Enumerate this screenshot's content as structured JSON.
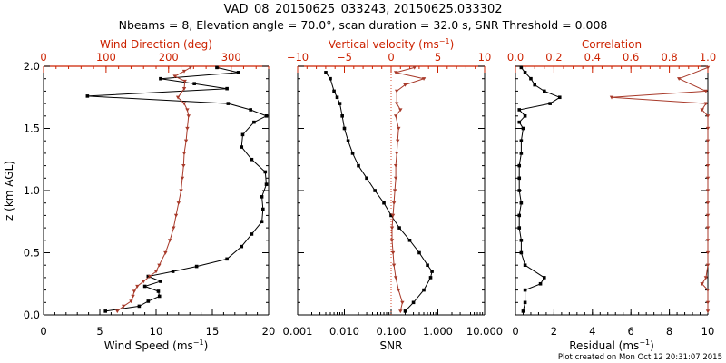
{
  "title_line1": "VAD_08_20150625_033243, 20150625.033302",
  "title_line2": "Nbeams = 8, Elevation angle = 70.0°, scan duration = 32.0 s, SNR Threshold = 0.008",
  "footer": "Plot created on Mon Oct 12 20:31:07 2015",
  "colors": {
    "black_series": "#000000",
    "red_series": "#a83a2a",
    "red_axis": "#cc2200"
  },
  "chart_data": [
    {
      "type": "line",
      "ylabel": "z (km AGL)",
      "ylim": [
        0,
        2.0
      ],
      "yticks": [
        "0.0",
        "0.5",
        "1.0",
        "1.5",
        "2.0"
      ],
      "bottom_axis": {
        "label_main": "Wind Speed (ms",
        "label_sup": "−1",
        "label_end": ")",
        "range": [
          0,
          20
        ],
        "ticks": [
          "0",
          "5",
          "10",
          "15",
          "20"
        ]
      },
      "top_axis": {
        "label": "Wind Direction (deg)",
        "range": [
          0,
          360
        ],
        "ticks": [
          "0",
          "100",
          "200",
          "300"
        ]
      },
      "series": [
        {
          "axis": "bottom",
          "color": "black",
          "marker": "square",
          "z": [
            0.03,
            0.07,
            0.11,
            0.15,
            0.19,
            0.23,
            0.27,
            0.31,
            0.35,
            0.39,
            0.45,
            0.55,
            0.65,
            0.75,
            0.85,
            0.95,
            1.05,
            1.15,
            1.25,
            1.35,
            1.45,
            1.55,
            1.6,
            1.65,
            1.7,
            1.76,
            1.82,
            1.86,
            1.9,
            1.95,
            1.99
          ],
          "v": [
            5.5,
            8.5,
            9.3,
            10.3,
            10.2,
            9.0,
            10.4,
            9.3,
            11.5,
            13.6,
            16.3,
            17.6,
            18.5,
            19.4,
            19.5,
            19.4,
            19.8,
            19.7,
            18.5,
            17.6,
            17.7,
            18.7,
            19.8,
            18.4,
            16.4,
            3.9,
            16.3,
            13.4,
            10.4,
            17.3,
            15.4
          ]
        },
        {
          "axis": "top",
          "color": "red",
          "marker": "triangle",
          "z": [
            0.03,
            0.07,
            0.11,
            0.15,
            0.19,
            0.23,
            0.27,
            0.31,
            0.35,
            0.4,
            0.5,
            0.6,
            0.7,
            0.8,
            0.9,
            1.0,
            1.1,
            1.2,
            1.3,
            1.4,
            1.5,
            1.6,
            1.65,
            1.7,
            1.75,
            1.82,
            1.88,
            1.92,
            1.96,
            1.99
          ],
          "v": [
            118,
            128,
            140,
            143,
            145,
            150,
            160,
            170,
            180,
            185,
            195,
            202,
            208,
            212,
            216,
            220,
            222,
            224,
            225,
            228,
            230,
            232,
            230,
            225,
            215,
            225,
            226,
            210,
            225,
            235
          ]
        }
      ]
    },
    {
      "type": "line",
      "xscale": "log",
      "ylim": [
        0,
        2.0
      ],
      "bottom_axis": {
        "label": "SNR",
        "range": [
          0.001,
          10
        ],
        "ticks": [
          "0.001",
          "0.010",
          "0.100",
          "1.000",
          "10.000"
        ]
      },
      "top_axis": {
        "label_main": "Vertical velocity (ms",
        "label_sup": "−1",
        "label_end": ")",
        "range": [
          -10,
          10
        ],
        "ticks": [
          "−10",
          "−5",
          "0",
          "5",
          "10"
        ]
      },
      "series": [
        {
          "axis": "bottom",
          "color": "black",
          "marker": "square",
          "z": [
            0.03,
            0.1,
            0.2,
            0.3,
            0.35,
            0.4,
            0.5,
            0.6,
            0.7,
            0.8,
            0.9,
            1.0,
            1.1,
            1.2,
            1.3,
            1.4,
            1.5,
            1.6,
            1.7,
            1.75,
            1.8,
            1.9,
            1.95
          ],
          "v": [
            0.2,
            0.3,
            0.5,
            0.7,
            0.75,
            0.6,
            0.4,
            0.25,
            0.15,
            0.1,
            0.07,
            0.045,
            0.03,
            0.02,
            0.015,
            0.012,
            0.01,
            0.009,
            0.008,
            0.007,
            0.006,
            0.005,
            0.004
          ]
        },
        {
          "axis": "top",
          "color": "red",
          "marker": "triangle",
          "z": [
            0.03,
            0.1,
            0.2,
            0.3,
            0.4,
            0.5,
            0.6,
            0.7,
            0.8,
            0.9,
            1.0,
            1.1,
            1.2,
            1.3,
            1.4,
            1.5,
            1.6,
            1.65,
            1.7,
            1.8,
            1.85,
            1.9,
            1.95,
            1.99
          ],
          "v": [
            1.0,
            1.2,
            0.8,
            0.5,
            0.3,
            0.2,
            0.1,
            0.1,
            0.2,
            0.3,
            0.4,
            0.5,
            0.5,
            0.6,
            0.7,
            0.8,
            0.5,
            1.0,
            0.6,
            0.6,
            1.5,
            3.5,
            0.5,
            2.5
          ]
        }
      ]
    },
    {
      "type": "line",
      "ylim": [
        0,
        2.0
      ],
      "bottom_axis": {
        "label_main": "Residual (ms",
        "label_sup": "−1",
        "label_end": ")",
        "range": [
          0,
          10
        ],
        "ticks": [
          "0",
          "2",
          "4",
          "6",
          "8",
          "10"
        ]
      },
      "top_axis": {
        "label": "Correlation",
        "range": [
          0,
          1.0
        ],
        "ticks": [
          "0.0",
          "0.2",
          "0.4",
          "0.6",
          "0.8",
          "1.0"
        ]
      },
      "series": [
        {
          "axis": "bottom",
          "color": "black",
          "marker": "square",
          "z": [
            0.03,
            0.1,
            0.2,
            0.25,
            0.3,
            0.4,
            0.5,
            0.6,
            0.7,
            0.8,
            0.9,
            1.0,
            1.1,
            1.2,
            1.3,
            1.4,
            1.5,
            1.55,
            1.6,
            1.65,
            1.7,
            1.75,
            1.8,
            1.85,
            1.9,
            1.95,
            1.99
          ],
          "v": [
            0.4,
            0.5,
            0.5,
            1.3,
            1.5,
            0.5,
            0.3,
            0.3,
            0.2,
            0.2,
            0.3,
            0.2,
            0.2,
            0.2,
            0.3,
            0.3,
            0.4,
            0.2,
            0.5,
            0.2,
            1.8,
            2.3,
            1.5,
            1.0,
            0.8,
            0.5,
            0.3
          ]
        },
        {
          "axis": "top",
          "color": "red",
          "marker": "triangle",
          "z": [
            0.03,
            0.1,
            0.2,
            0.25,
            0.3,
            0.4,
            0.5,
            0.6,
            0.7,
            0.8,
            0.9,
            1.0,
            1.1,
            1.2,
            1.3,
            1.4,
            1.5,
            1.6,
            1.65,
            1.7,
            1.75,
            1.8,
            1.9,
            1.99
          ],
          "v": [
            1.0,
            1.0,
            1.0,
            0.97,
            0.99,
            1.0,
            1.0,
            1.0,
            1.0,
            1.0,
            1.0,
            1.0,
            1.0,
            1.0,
            1.0,
            1.0,
            1.0,
            1.0,
            0.97,
            0.99,
            0.5,
            0.99,
            0.85,
            1.0
          ]
        }
      ]
    }
  ]
}
